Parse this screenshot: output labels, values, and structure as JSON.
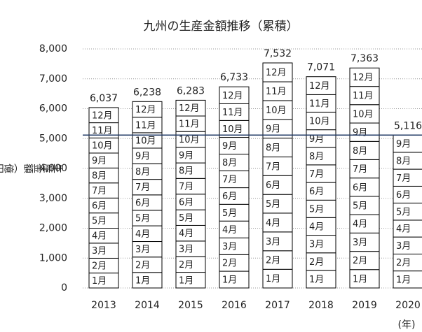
{
  "chart_data": {
    "type": "stacked-bar",
    "title": "九州の生産金額推移（累積）",
    "y_label": "生産金額（億円）",
    "x_label": "(年)",
    "categories": [
      "2013",
      "2014",
      "2015",
      "2016",
      "2017",
      "2018",
      "2019",
      "2020"
    ],
    "series": [
      {
        "name": "1月",
        "color": "#ffffff",
        "values": [
          500,
          520,
          525,
          560,
          625,
          590,
          615,
          570
        ]
      },
      {
        "name": "2月",
        "color": "#ffffff",
        "values": [
          495,
          515,
          520,
          555,
          620,
          585,
          610,
          565
        ]
      },
      {
        "name": "3月",
        "color": "#ffffff",
        "values": [
          505,
          520,
          525,
          560,
          630,
          590,
          615,
          570
        ]
      },
      {
        "name": "4月",
        "color": "#ffffff",
        "values": [
          500,
          525,
          525,
          565,
          630,
          590,
          615,
          565
        ]
      },
      {
        "name": "5月",
        "color": "#ffffff",
        "values": [
          510,
          520,
          520,
          560,
          625,
          585,
          610,
          570
        ]
      },
      {
        "name": "6月",
        "color": "#ffffff",
        "values": [
          500,
          515,
          525,
          555,
          630,
          590,
          615,
          565
        ]
      },
      {
        "name": "7月",
        "color": "#ffffff",
        "values": [
          505,
          520,
          525,
          565,
          625,
          590,
          615,
          570
        ]
      },
      {
        "name": "8月",
        "color": "#ffffff",
        "values": [
          500,
          525,
          520,
          560,
          630,
          585,
          610,
          565
        ]
      },
      {
        "name": "9月",
        "color": "#ffffff",
        "values": [
          500,
          520,
          525,
          560,
          625,
          590,
          615,
          576
        ]
      },
      {
        "name": "10月",
        "color": "#ffffff",
        "values": [
          505,
          515,
          525,
          565,
          630,
          590,
          615,
          null
        ]
      },
      {
        "name": "11月",
        "color": "#ffffff",
        "values": [
          510,
          520,
          520,
          560,
          630,
          585,
          610,
          null
        ]
      },
      {
        "name": "12月",
        "color": "#ffffff",
        "values": [
          507,
          523,
          528,
          568,
          632,
          601,
          618,
          null
        ]
      }
    ],
    "totals": {
      "values": [
        6037,
        6238,
        6283,
        6733,
        7532,
        7071,
        7363,
        5116
      ],
      "value_labels": [
        "6,037",
        "6,238",
        "6,283",
        "6,733",
        "7,532",
        "7,071",
        "7,363",
        "5,116"
      ]
    },
    "reference_line_color": "#1f3864",
    "ylim": [
      0,
      8000
    ],
    "yticks": [
      0,
      {
        "value": 1000,
        "label": "1,000"
      },
      {
        "value": 2000,
        "label": "2,000"
      },
      {
        "value": 3000,
        "label": "3,000"
      },
      {
        "value": 4000,
        "label": "4,000"
      },
      {
        "value": 5000,
        "label": "5,000"
      },
      {
        "value": 6000,
        "label": "6,000"
      },
      {
        "value": 7000,
        "label": "7,000"
      },
      {
        "value": 8000,
        "label": "8,000"
      }
    ],
    "grid": true
  }
}
